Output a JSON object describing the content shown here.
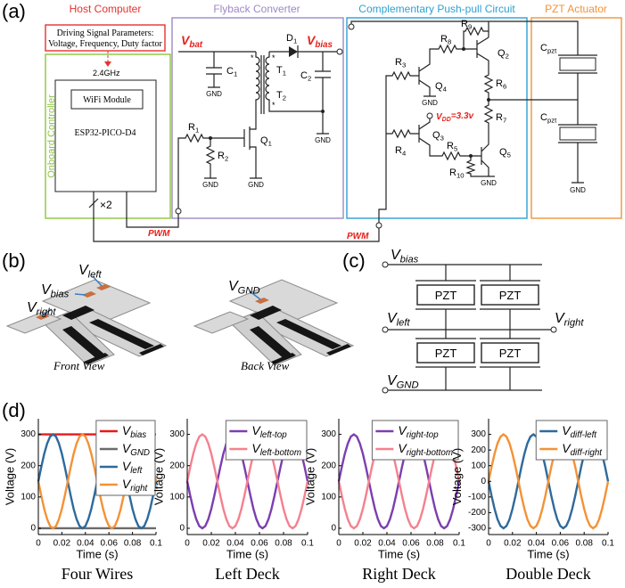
{
  "panel_labels": [
    "(a)",
    "(b)",
    "(c)",
    "(d)"
  ],
  "circuit": {
    "sections": [
      "Host Computer",
      "Flyback Converter",
      "Complementary Push-pull Circuit",
      "PZT Actuator",
      "Onboard Controller"
    ],
    "host_text": [
      "Driving Signal Parameters:",
      "Voltage, Frequency, Duty factor"
    ],
    "wireless": "2.4GHz",
    "wifi": "WiFi Module",
    "mcu": "ESP32-PICO-D4",
    "bus": "×2",
    "pwm": [
      "PWM",
      "PWM"
    ],
    "supplies": [
      "Vbat",
      "Vbias",
      "VDD=3.3v"
    ],
    "components": [
      "C1",
      "T1",
      "T2",
      "D1",
      "C2",
      "R1",
      "R2",
      "Q1",
      "R3",
      "R4",
      "R5",
      "R6",
      "R7",
      "R8",
      "R9",
      "R10",
      "Q2",
      "Q3",
      "Q4",
      "Q5",
      "Cpzt",
      "Cpzt"
    ],
    "grounds": [
      "GND",
      "GND",
      "GND",
      "GND",
      "GND",
      "GND",
      "GND"
    ]
  },
  "views": {
    "labels": [
      "Vbias",
      "Vleft",
      "Vright",
      "VGND"
    ],
    "captions": [
      "Front View",
      "Back View"
    ]
  },
  "pzt_schematic": {
    "terminals": [
      "Vbias",
      "Vleft",
      "Vright",
      "VGND"
    ],
    "elements": [
      "PZT",
      "PZT",
      "PZT",
      "PZT"
    ]
  },
  "chart_data": [
    {
      "type": "line",
      "title": "Four Wires",
      "x_label": "Time (s)",
      "y_label": "Voltage (V)",
      "x": [
        0,
        0.0025,
        0.005,
        0.0075,
        0.01,
        0.0125,
        0.015,
        0.0175,
        0.02,
        0.0225,
        0.025,
        0.0275,
        0.03,
        0.0325,
        0.035,
        0.0375,
        0.04,
        0.0425,
        0.045,
        0.0475,
        0.05,
        0.0525,
        0.055,
        0.0575,
        0.06,
        0.0625,
        0.065,
        0.0675,
        0.07,
        0.0725,
        0.075,
        0.0775,
        0.08,
        0.0825,
        0.085,
        0.0875,
        0.09,
        0.0925,
        0.095,
        0.0975,
        0.1
      ],
      "xlim": [
        0,
        0.1
      ],
      "xticks": [
        0,
        0.02,
        0.04,
        0.06,
        0.08,
        0.1
      ],
      "ylim": [
        -20,
        350
      ],
      "yticks": [
        0,
        100,
        200,
        300
      ],
      "legend": "upper right",
      "series": [
        {
          "name": "Vbias",
          "color": "#e8191c",
          "values": [
            300,
            300,
            300,
            300,
            300,
            300,
            300,
            300,
            300,
            300,
            300,
            300,
            300,
            300,
            300,
            300,
            300,
            300,
            300,
            300,
            300,
            300,
            300,
            300,
            300,
            300,
            300,
            300,
            300,
            300,
            300,
            300,
            300,
            300,
            300,
            300,
            300,
            300,
            300,
            300,
            300
          ]
        },
        {
          "name": "VGND",
          "color": "#6b6b6b",
          "values": [
            0,
            0,
            0,
            0,
            0,
            0,
            0,
            0,
            0,
            0,
            0,
            0,
            0,
            0,
            0,
            0,
            0,
            0,
            0,
            0,
            0,
            0,
            0,
            0,
            0,
            0,
            0,
            0,
            0,
            0,
            0,
            0,
            0,
            0,
            0,
            0,
            0,
            0,
            0,
            0,
            0
          ]
        },
        {
          "name": "Vleft",
          "color": "#2e6a9c",
          "values": [
            150,
            196,
            238,
            271,
            293,
            300,
            293,
            271,
            238,
            196,
            150,
            104,
            62,
            29,
            7,
            0,
            7,
            29,
            62,
            104,
            150,
            196,
            238,
            271,
            293,
            300,
            293,
            271,
            238,
            196,
            150,
            104,
            62,
            29,
            7,
            0,
            7,
            29,
            62,
            104,
            150
          ]
        },
        {
          "name": "Vright",
          "color": "#f39237",
          "values": [
            150,
            104,
            62,
            29,
            7,
            0,
            7,
            29,
            62,
            104,
            150,
            196,
            238,
            271,
            293,
            300,
            293,
            271,
            238,
            196,
            150,
            104,
            62,
            29,
            7,
            0,
            7,
            29,
            62,
            104,
            150,
            196,
            238,
            271,
            293,
            300,
            293,
            271,
            238,
            196,
            150
          ]
        }
      ]
    },
    {
      "type": "line",
      "title": "Left Deck",
      "x_label": "Time (s)",
      "y_label": "Voltage (V)",
      "x": [
        0,
        0.0025,
        0.005,
        0.0075,
        0.01,
        0.0125,
        0.015,
        0.0175,
        0.02,
        0.0225,
        0.025,
        0.0275,
        0.03,
        0.0325,
        0.035,
        0.0375,
        0.04,
        0.0425,
        0.045,
        0.0475,
        0.05,
        0.0525,
        0.055,
        0.0575,
        0.06,
        0.0625,
        0.065,
        0.0675,
        0.07,
        0.0725,
        0.075,
        0.0775,
        0.08,
        0.0825,
        0.085,
        0.0875,
        0.09,
        0.0925,
        0.095,
        0.0975,
        0.1
      ],
      "xlim": [
        0,
        0.1
      ],
      "xticks": [
        0,
        0.02,
        0.04,
        0.06,
        0.08,
        0.1
      ],
      "ylim": [
        -20,
        350
      ],
      "yticks": [
        0,
        100,
        200,
        300
      ],
      "legend": "upper right",
      "series": [
        {
          "name": "Vleft-top",
          "color": "#7b3fb0",
          "values": [
            150,
            104,
            62,
            29,
            7,
            0,
            7,
            29,
            62,
            104,
            150,
            196,
            238,
            271,
            293,
            300,
            293,
            271,
            238,
            196,
            150,
            104,
            62,
            29,
            7,
            0,
            7,
            29,
            62,
            104,
            150,
            196,
            238,
            271,
            293,
            300,
            293,
            271,
            238,
            196,
            150
          ]
        },
        {
          "name": "Vleft-bottom",
          "color": "#f4818f",
          "values": [
            150,
            196,
            238,
            271,
            293,
            300,
            293,
            271,
            238,
            196,
            150,
            104,
            62,
            29,
            7,
            0,
            7,
            29,
            62,
            104,
            150,
            196,
            238,
            271,
            293,
            300,
            293,
            271,
            238,
            196,
            150,
            104,
            62,
            29,
            7,
            0,
            7,
            29,
            62,
            104,
            150
          ]
        }
      ]
    },
    {
      "type": "line",
      "title": "Right Deck",
      "x_label": "Time (s)",
      "y_label": "Voltage (V)",
      "x": [
        0,
        0.0025,
        0.005,
        0.0075,
        0.01,
        0.0125,
        0.015,
        0.0175,
        0.02,
        0.0225,
        0.025,
        0.0275,
        0.03,
        0.0325,
        0.035,
        0.0375,
        0.04,
        0.0425,
        0.045,
        0.0475,
        0.05,
        0.0525,
        0.055,
        0.0575,
        0.06,
        0.0625,
        0.065,
        0.0675,
        0.07,
        0.0725,
        0.075,
        0.0775,
        0.08,
        0.0825,
        0.085,
        0.0875,
        0.09,
        0.0925,
        0.095,
        0.0975,
        0.1
      ],
      "xlim": [
        0,
        0.1
      ],
      "xticks": [
        0,
        0.02,
        0.04,
        0.06,
        0.08,
        0.1
      ],
      "ylim": [
        -20,
        350
      ],
      "yticks": [
        0,
        100,
        200,
        300
      ],
      "legend": "upper right",
      "series": [
        {
          "name": "Vright-top",
          "color": "#7b3fb0",
          "values": [
            150,
            196,
            238,
            271,
            293,
            300,
            293,
            271,
            238,
            196,
            150,
            104,
            62,
            29,
            7,
            0,
            7,
            29,
            62,
            104,
            150,
            196,
            238,
            271,
            293,
            300,
            293,
            271,
            238,
            196,
            150,
            104,
            62,
            29,
            7,
            0,
            7,
            29,
            62,
            104,
            150
          ]
        },
        {
          "name": "Vright-bottom",
          "color": "#f4818f",
          "values": [
            150,
            104,
            62,
            29,
            7,
            0,
            7,
            29,
            62,
            104,
            150,
            196,
            238,
            271,
            293,
            300,
            293,
            271,
            238,
            196,
            150,
            104,
            62,
            29,
            7,
            0,
            7,
            29,
            62,
            104,
            150,
            196,
            238,
            271,
            293,
            300,
            293,
            271,
            238,
            196,
            150
          ]
        }
      ]
    },
    {
      "type": "line",
      "title": "Double Deck",
      "x_label": "Time (s)",
      "y_label": "Voltage (V)",
      "x": [
        0,
        0.0025,
        0.005,
        0.0075,
        0.01,
        0.0125,
        0.015,
        0.0175,
        0.02,
        0.0225,
        0.025,
        0.0275,
        0.03,
        0.0325,
        0.035,
        0.0375,
        0.04,
        0.0425,
        0.045,
        0.0475,
        0.05,
        0.0525,
        0.055,
        0.0575,
        0.06,
        0.0625,
        0.065,
        0.0675,
        0.07,
        0.0725,
        0.075,
        0.0775,
        0.08,
        0.0825,
        0.085,
        0.0875,
        0.09,
        0.0925,
        0.095,
        0.0975,
        0.1
      ],
      "xlim": [
        0,
        0.1
      ],
      "xticks": [
        0,
        0.02,
        0.04,
        0.06,
        0.08,
        0.1
      ],
      "ylim": [
        -340,
        400
      ],
      "yticks": [
        -300,
        -200,
        -100,
        0,
        100,
        200,
        300
      ],
      "legend": "upper right",
      "series": [
        {
          "name": "Vdiff-left",
          "color": "#2e6a9c",
          "values": [
            0,
            -93,
            -176,
            -243,
            -285,
            -300,
            -285,
            -243,
            -176,
            -93,
            0,
            93,
            176,
            243,
            285,
            300,
            285,
            243,
            176,
            93,
            0,
            -93,
            -176,
            -243,
            -285,
            -300,
            -285,
            -243,
            -176,
            -93,
            0,
            93,
            176,
            243,
            285,
            300,
            285,
            243,
            176,
            93,
            0
          ]
        },
        {
          "name": "Vdiff-right",
          "color": "#f39237",
          "values": [
            0,
            93,
            176,
            243,
            285,
            300,
            285,
            243,
            176,
            93,
            0,
            -93,
            -176,
            -243,
            -285,
            -300,
            -285,
            -243,
            -176,
            -93,
            0,
            93,
            176,
            243,
            285,
            300,
            285,
            243,
            176,
            93,
            0,
            -93,
            -176,
            -243,
            -285,
            -300,
            -285,
            -243,
            -176,
            -93,
            0
          ]
        }
      ]
    }
  ]
}
